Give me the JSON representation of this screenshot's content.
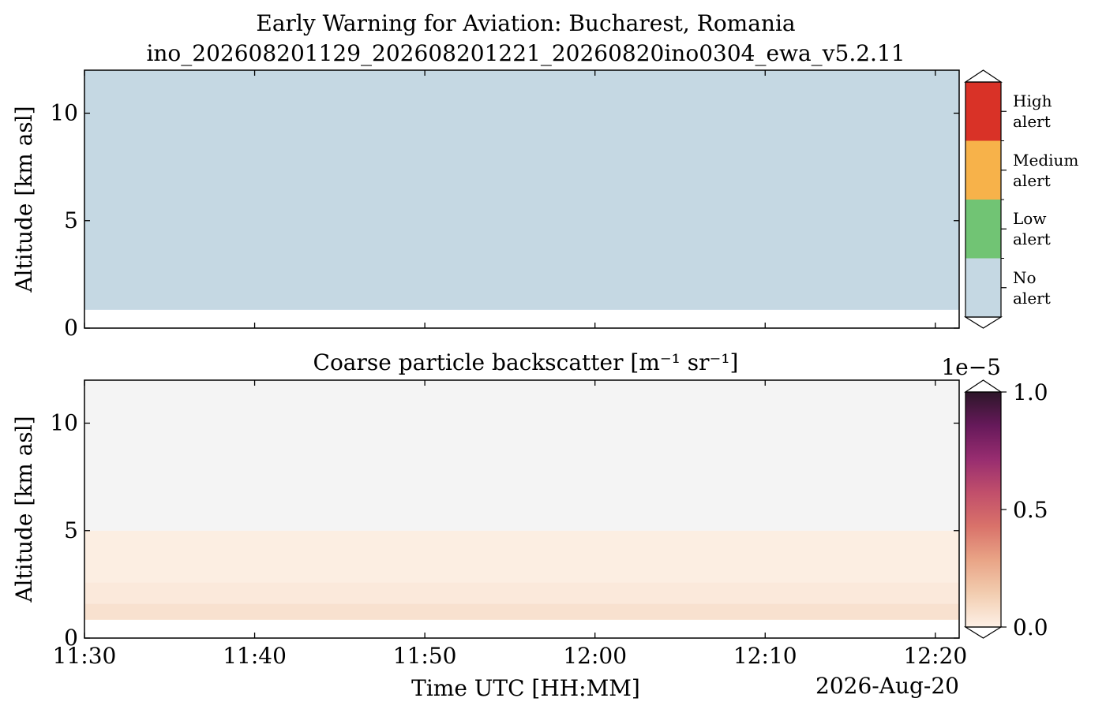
{
  "chart_data": [
    {
      "type": "category_map",
      "title": "Early Warning for Aviation: Bucharest, Romania",
      "subtitle": "ino_202608201129_202608201221_20260820ino0304_ewa_v5.2.11",
      "ylabel": "Altitude [km asl]",
      "xlim": [
        690,
        741.4
      ],
      "xticks": [
        690,
        700,
        710,
        720,
        730,
        740
      ],
      "ylim": [
        0,
        12
      ],
      "yticks": [
        0,
        5,
        10
      ],
      "x_edges": [
        690,
        741.4
      ],
      "y_edges": [
        0.85,
        12
      ],
      "values": [
        [
          "No alert"
        ]
      ],
      "legend": [
        {
          "name": "No alert",
          "color": "#c5d8e3"
        },
        {
          "name": "Low alert",
          "color": "#71c474"
        },
        {
          "name": "Medium alert",
          "color": "#f7b24a"
        },
        {
          "name": "High alert",
          "color": "#d93227"
        }
      ]
    },
    {
      "type": "heatmap",
      "title": "Coarse particle backscatter [m⁻¹ sr⁻¹]",
      "ylabel": "Altitude [km asl]",
      "xlabel": "Time UTC [HH:MM]",
      "date_label": "2026-Aug-20",
      "xlim": [
        690,
        741.4
      ],
      "xticks": [
        {
          "value": 690,
          "label": "11:30"
        },
        {
          "value": 700,
          "label": "11:40"
        },
        {
          "value": 710,
          "label": "11:50"
        },
        {
          "value": 720,
          "label": "12:00"
        },
        {
          "value": 730,
          "label": "12:10"
        },
        {
          "value": 740,
          "label": "12:20"
        }
      ],
      "ylim": [
        0,
        12
      ],
      "yticks": [
        0,
        5,
        10
      ],
      "x_edges": [
        690,
        741.4
      ],
      "y_edges": [
        0.85,
        1.6,
        2.6,
        5,
        12
      ],
      "values": [
        [
          0.06
        ],
        [
          0.03
        ],
        [
          0.01
        ],
        [
          -0.002
        ]
      ],
      "clim": [
        0,
        1
      ],
      "cticks": [
        {
          "value": 0,
          "label": "0.0"
        },
        {
          "value": 0.5,
          "label": "0.5"
        },
        {
          "value": 1,
          "label": "1.0"
        }
      ],
      "colorbar_offset_label": "1e−5",
      "colormap": [
        "#fdf0e6",
        "#f2cdb0",
        "#e9a486",
        "#d9726a",
        "#c14f6b",
        "#982d70",
        "#66195a",
        "#2d1629"
      ],
      "under_color": "#f4f4f4"
    }
  ]
}
